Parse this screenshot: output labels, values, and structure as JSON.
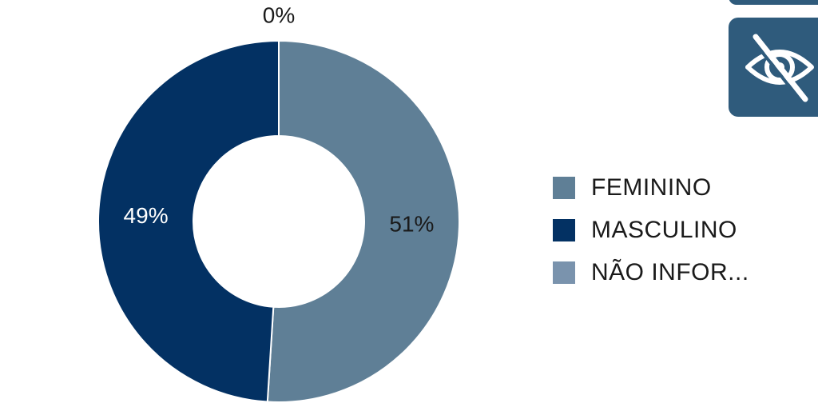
{
  "chart_data": {
    "type": "pie",
    "title": "",
    "categories": [
      "FEMININO",
      "MASCULINO",
      "NÃO INFOR..."
    ],
    "values": [
      51,
      49,
      0
    ],
    "value_labels": [
      "51%",
      "49%",
      "0%"
    ],
    "colors": [
      "#5f7f96",
      "#033163",
      "#7a93ad"
    ],
    "donut": true,
    "legend_position": "right"
  },
  "toolbar": {
    "hide_icon": "eye-slash-icon"
  }
}
